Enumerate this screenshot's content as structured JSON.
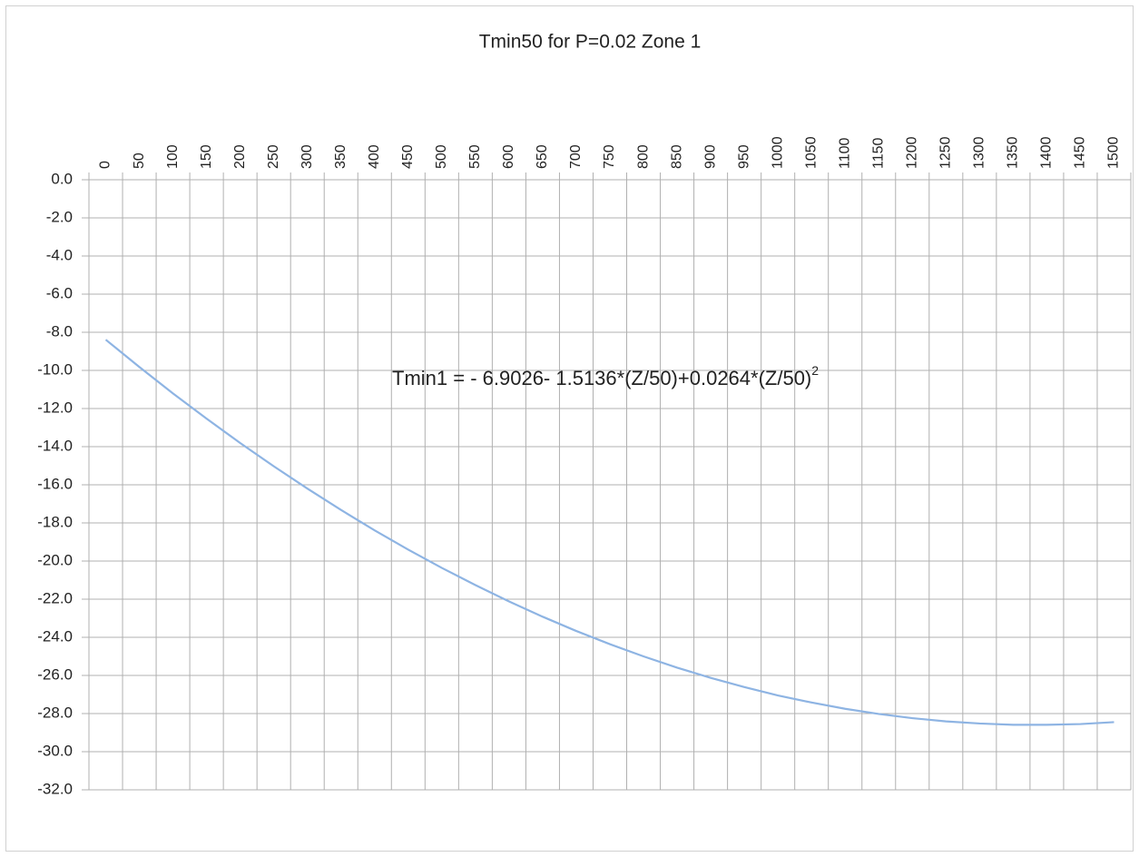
{
  "chart_data": {
    "type": "line",
    "title": "Tmin50 for P=0.02 Zone 1",
    "categories": [
      "0",
      "50",
      "100",
      "150",
      "200",
      "250",
      "300",
      "350",
      "400",
      "450",
      "500",
      "550",
      "600",
      "650",
      "700",
      "750",
      "800",
      "850",
      "900",
      "950",
      "1000",
      "1050",
      "1100",
      "1150",
      "1200",
      "1250",
      "1300",
      "1350",
      "1400",
      "1450",
      "1500"
    ],
    "values": [
      -8.39,
      -9.82,
      -11.21,
      -12.53,
      -13.81,
      -15.03,
      -16.2,
      -17.32,
      -18.39,
      -19.4,
      -20.36,
      -21.26,
      -22.12,
      -22.92,
      -23.67,
      -24.36,
      -25.0,
      -25.59,
      -26.13,
      -26.61,
      -27.05,
      -27.42,
      -27.75,
      -28.02,
      -28.24,
      -28.41,
      -28.52,
      -28.59,
      -28.59,
      -28.55,
      -28.45
    ],
    "color": "#8eb4e3",
    "ylim": [
      -32,
      0
    ],
    "yticks": [
      {
        "value": 0,
        "label": "0.0"
      },
      {
        "value": -2,
        "label": "-2.0"
      },
      {
        "value": -4,
        "label": "-4.0"
      },
      {
        "value": -6,
        "label": "-6.0"
      },
      {
        "value": -8,
        "label": "-8.0"
      },
      {
        "value": -10,
        "label": "-10.0"
      },
      {
        "value": -12,
        "label": "-12.0"
      },
      {
        "value": -14,
        "label": "-14.0"
      },
      {
        "value": -16,
        "label": "-16.0"
      },
      {
        "value": -18,
        "label": "-18.0"
      },
      {
        "value": -20,
        "label": "-20.0"
      },
      {
        "value": -22,
        "label": "-22.0"
      },
      {
        "value": -24,
        "label": "-24.0"
      },
      {
        "value": -26,
        "label": "-26.0"
      },
      {
        "value": -28,
        "label": "-28.0"
      },
      {
        "value": -30,
        "label": "-30.0"
      },
      {
        "value": -32,
        "label": "-32.0"
      }
    ],
    "grid": true,
    "annotation": {
      "text": "Tmin1 = - 6.9026- 1.5136*(Z/50)+0.0264*(Z/50)",
      "superscript": "2"
    }
  }
}
